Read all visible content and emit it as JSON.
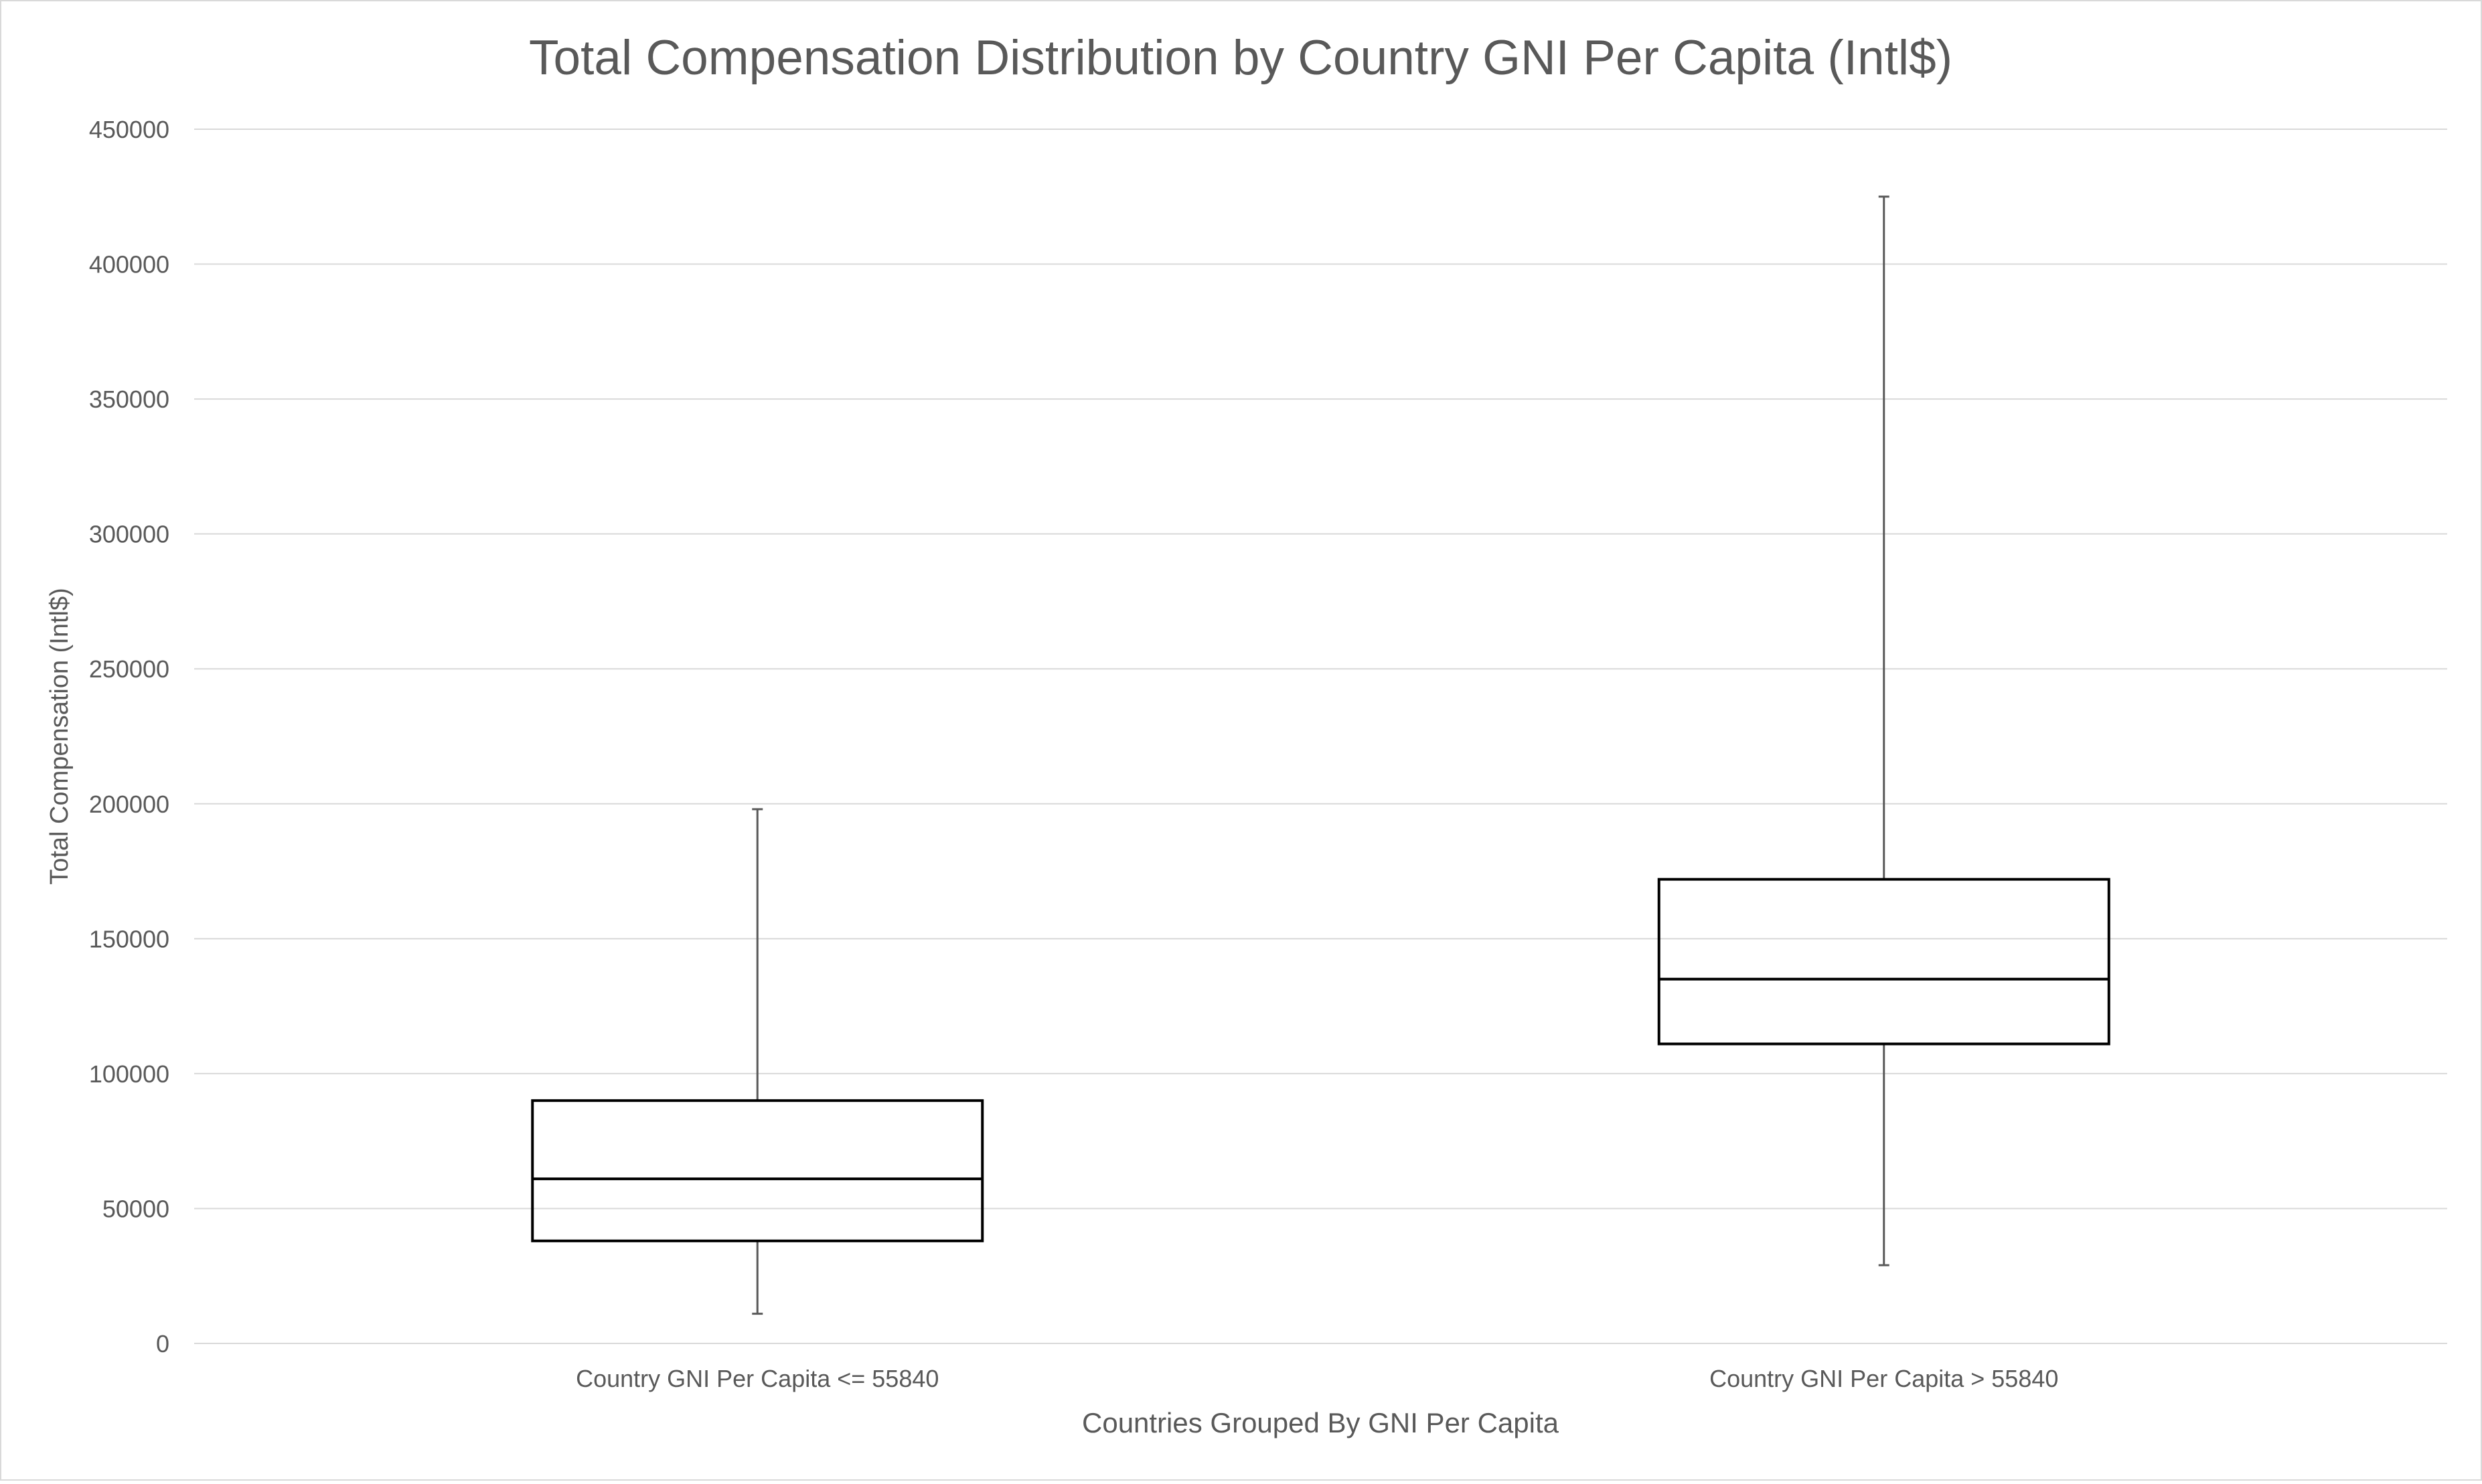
{
  "chart_data": {
    "type": "box",
    "title": "Total Compensation Distribution by Country GNI Per Capita (Intl$)",
    "xlabel": "Countries Grouped By GNI Per Capita",
    "ylabel": "Total Compensation (Intl$)",
    "ylim": [
      0,
      450000
    ],
    "yticks": [
      0,
      50000,
      100000,
      150000,
      200000,
      250000,
      300000,
      350000,
      400000,
      450000
    ],
    "ytick_labels": [
      "0",
      "50000",
      "100000",
      "150000",
      "200000",
      "250000",
      "300000",
      "350000",
      "400000",
      "450000"
    ],
    "grid": true,
    "categories": [
      "Country GNI Per Capita <= 55840",
      "Country GNI Per Capita > 55840"
    ],
    "boxes": [
      {
        "category": "Country GNI Per Capita <= 55840",
        "min": 11000,
        "q1": 38000,
        "median": 61000,
        "q3": 90000,
        "max": 198000
      },
      {
        "category": "Country GNI Per Capita > 55840",
        "min": 29000,
        "q1": 111000,
        "median": 135000,
        "q3": 172000,
        "max": 425000
      }
    ],
    "colors": {
      "grid": "#d9d9d9",
      "box_stroke": "#000000",
      "whisker": "#595959",
      "text": "#595959"
    }
  }
}
